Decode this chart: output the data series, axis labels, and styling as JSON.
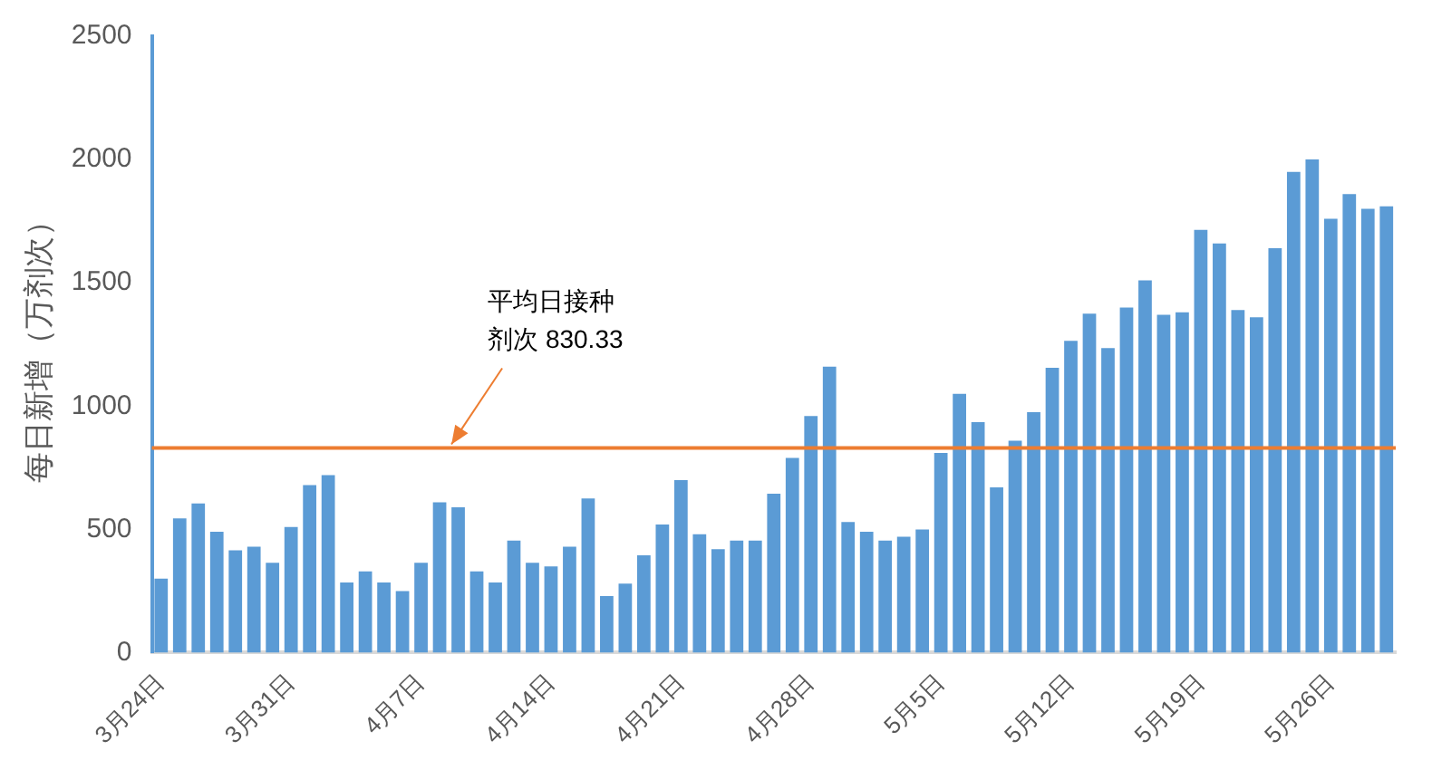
{
  "chart_data": {
    "type": "bar",
    "ylabel": "每日新增（万剂次）",
    "categories": [
      "3月24日",
      null,
      null,
      null,
      null,
      null,
      null,
      "3月31日",
      null,
      null,
      null,
      null,
      null,
      null,
      "4月7日",
      null,
      null,
      null,
      null,
      null,
      null,
      "4月14日",
      null,
      null,
      null,
      null,
      null,
      null,
      "4月21日",
      null,
      null,
      null,
      null,
      null,
      null,
      "4月28日",
      null,
      null,
      null,
      null,
      null,
      null,
      "5月5日",
      null,
      null,
      null,
      null,
      null,
      null,
      "5月12日",
      null,
      null,
      null,
      null,
      null,
      null,
      "5月19日",
      null,
      null,
      null,
      null,
      null,
      null,
      "5月26日",
      null,
      null,
      null
    ],
    "values": [
      300,
      545,
      605,
      490,
      415,
      430,
      365,
      510,
      680,
      720,
      285,
      330,
      285,
      250,
      365,
      610,
      590,
      330,
      285,
      455,
      365,
      350,
      430,
      625,
      230,
      280,
      395,
      520,
      700,
      480,
      420,
      455,
      455,
      645,
      790,
      960,
      1160,
      530,
      490,
      455,
      470,
      500,
      810,
      1050,
      935,
      670,
      860,
      975,
      1155,
      1265,
      1375,
      1235,
      1400,
      1510,
      1370,
      1380,
      1715,
      1660,
      1390,
      1360,
      1640,
      1950,
      2000,
      1760,
      1860,
      1800,
      1810
    ],
    "color": "#5b9bd5",
    "ylim": [
      0,
      2500
    ],
    "yticks": [
      0,
      500,
      1000,
      1500,
      2000,
      2500
    ],
    "ref_lines": [
      {
        "axis": "y",
        "value": 830.33,
        "label": "平均日接种剂次 830.33",
        "color": "#ed7d31"
      }
    ],
    "grid": false,
    "legend": false
  }
}
